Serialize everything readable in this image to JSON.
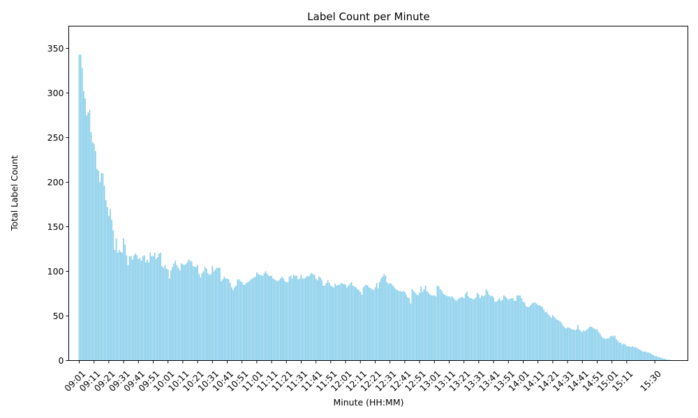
{
  "chart_data": {
    "type": "bar",
    "title": "Label Count per Minute",
    "xlabel": "Minute (HH:MM)",
    "ylabel": "Total Label Count",
    "bar_color": "#87ceeb",
    "ylim": [
      0,
      375
    ],
    "yticks": [
      0,
      50,
      100,
      150,
      200,
      250,
      300,
      350
    ],
    "grid": false,
    "x_start": "09:01",
    "x_end": "15:30",
    "xtick_labels": [
      "09:01",
      "09:11",
      "09:21",
      "09:31",
      "09:41",
      "09:51",
      "10:01",
      "10:11",
      "10:21",
      "10:31",
      "10:41",
      "10:51",
      "11:01",
      "11:11",
      "11:21",
      "11:31",
      "11:41",
      "11:51",
      "12:01",
      "12:11",
      "12:21",
      "12:31",
      "12:41",
      "12:51",
      "13:01",
      "13:11",
      "13:21",
      "13:31",
      "13:41",
      "13:51",
      "14:01",
      "14:11",
      "14:21",
      "14:31",
      "14:41",
      "14:51",
      "15:01",
      "15:11",
      "15:30"
    ],
    "values": [
      343,
      343,
      328,
      302,
      294,
      275,
      278,
      281,
      256,
      245,
      243,
      235,
      215,
      213,
      200,
      210,
      210,
      196,
      180,
      172,
      162,
      170,
      158,
      146,
      124,
      137,
      121,
      124,
      122,
      121,
      137,
      130,
      118,
      107,
      117,
      117,
      113,
      118,
      120,
      118,
      114,
      115,
      112,
      117,
      118,
      110,
      113,
      110,
      121,
      117,
      117,
      121,
      114,
      116,
      120,
      121,
      106,
      104,
      107,
      103,
      102,
      92,
      101,
      105,
      109,
      112,
      107,
      104,
      101,
      109,
      108,
      107,
      108,
      110,
      113,
      112,
      111,
      106,
      105,
      105,
      107,
      97,
      93,
      98,
      100,
      105,
      103,
      98,
      96,
      97,
      106,
      100,
      102,
      104,
      104,
      104,
      89,
      91,
      94,
      92,
      92,
      91,
      87,
      82,
      79,
      82,
      84,
      91,
      91,
      89,
      88,
      85,
      85,
      87,
      88,
      89,
      91,
      92,
      93,
      94,
      99,
      97,
      96,
      96,
      95,
      98,
      100,
      97,
      95,
      95,
      95,
      92,
      91,
      90,
      89,
      90,
      92,
      94,
      92,
      89,
      88,
      88,
      94,
      95,
      92,
      96,
      95,
      95,
      91,
      92,
      96,
      92,
      92,
      93,
      95,
      94,
      96,
      98,
      97,
      96,
      92,
      90,
      94,
      93,
      90,
      84,
      84,
      87,
      90,
      87,
      84,
      83,
      82,
      86,
      84,
      85,
      85,
      87,
      86,
      86,
      85,
      82,
      84,
      86,
      88,
      84,
      83,
      82,
      80,
      79,
      77,
      74,
      82,
      84,
      85,
      84,
      82,
      81,
      80,
      79,
      82,
      87,
      81,
      88,
      92,
      94,
      97,
      95,
      88,
      86,
      87,
      86,
      84,
      82,
      80,
      79,
      78,
      78,
      77,
      78,
      77,
      74,
      71,
      70,
      64,
      80,
      78,
      76,
      74,
      73,
      76,
      83,
      77,
      80,
      84,
      78,
      76,
      74,
      73,
      73,
      73,
      72,
      84,
      83,
      80,
      78,
      75,
      74,
      73,
      72,
      72,
      71,
      72,
      70,
      68,
      67,
      69,
      70,
      71,
      71,
      70,
      75,
      77,
      72,
      70,
      70,
      69,
      69,
      71,
      76,
      74,
      70,
      73,
      72,
      73,
      80,
      78,
      74,
      72,
      73,
      71,
      66,
      66,
      68,
      70,
      67,
      68,
      73,
      72,
      70,
      68,
      69,
      70,
      70,
      67,
      67,
      73,
      73,
      73,
      70,
      66,
      65,
      61,
      60,
      60,
      62,
      64,
      65,
      65,
      64,
      62,
      62,
      61,
      60,
      57,
      54,
      55,
      52,
      50,
      48,
      51,
      49,
      47,
      46,
      45,
      44,
      42,
      39,
      37,
      36,
      37,
      37,
      36,
      35,
      35,
      34,
      35,
      40,
      35,
      33,
      32,
      34,
      33,
      35,
      36,
      38,
      38,
      37,
      36,
      35,
      35,
      32,
      30,
      27,
      25,
      25,
      24,
      25,
      25,
      27,
      28,
      27,
      28,
      24,
      22,
      20,
      20,
      18,
      19,
      18,
      16,
      16,
      16,
      15,
      16,
      15,
      15,
      14,
      13,
      12,
      11,
      10,
      10,
      10,
      9,
      9,
      8,
      7,
      6,
      5,
      5,
      4,
      4,
      3,
      3,
      2,
      2,
      1,
      1,
      1
    ]
  }
}
